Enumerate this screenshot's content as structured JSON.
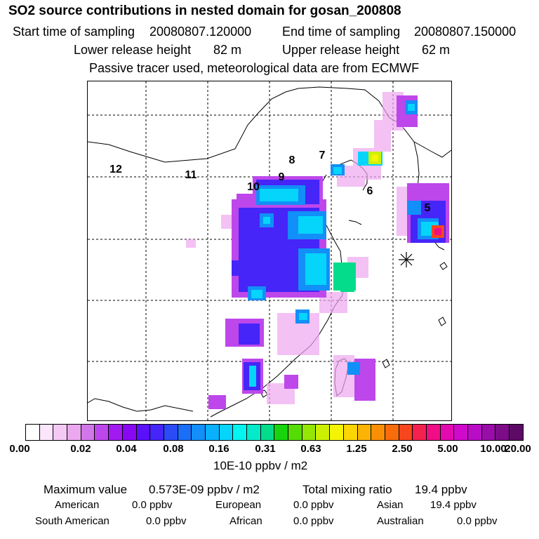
{
  "title": "SO2 source contributions in nested domain for gosan_200808",
  "header": {
    "start_label": "Start time of sampling",
    "start_value": "20080807.120000",
    "end_label": "End time of sampling",
    "end_value": "20080807.150000",
    "lower_label": "Lower release height",
    "lower_value": "82 m",
    "upper_label": "Upper release height",
    "upper_value": "62 m",
    "note": "Passive tracer used, meteorological data are from ECMWF"
  },
  "map": {
    "region_labels": [
      "12",
      "11",
      "10",
      "9",
      "8",
      "7",
      "6",
      "5"
    ],
    "receptor": "gosan-receptor"
  },
  "colorbar": {
    "colors": [
      "#ffffff",
      "#fbe6fb",
      "#f4c9f4",
      "#eaa8ee",
      "#d277ea",
      "#bd47eb",
      "#a21af1",
      "#8a07f4",
      "#5a10f8",
      "#4525f7",
      "#2b4bf6",
      "#1b6ef6",
      "#128ff8",
      "#09b0fb",
      "#05d4fb",
      "#04f4f0",
      "#05eac8",
      "#04dc8c",
      "#18d40e",
      "#56dc05",
      "#94e605",
      "#ccf004",
      "#f4f404",
      "#fbd504",
      "#fbb404",
      "#f98f04",
      "#f86c0b",
      "#f7451d",
      "#f4214e",
      "#f00d86",
      "#e30ab0",
      "#cf0aca",
      "#b80cc5",
      "#990ea9",
      "#7d0c89",
      "#5d0a66"
    ],
    "ticks": [
      "0.00",
      "0.02",
      "0.04",
      "0.08",
      "0.16",
      "0.31",
      "0.63",
      "1.25",
      "2.50",
      "5.00",
      "10.00",
      "20.00"
    ],
    "unit": "10E-10 ppbv / m2"
  },
  "stats": {
    "max_label": "Maximum value",
    "max_value": "0.573E-09 ppbv / m2",
    "total_label": "Total mixing ratio",
    "total_value": "19.4 ppbv"
  },
  "regions": [
    {
      "name": "American",
      "value": "0.0 ppbv"
    },
    {
      "name": "European",
      "value": "0.0 ppbv"
    },
    {
      "name": "Asian",
      "value": "19.4 ppbv"
    },
    {
      "name": "South American",
      "value": "0.0 ppbv"
    },
    {
      "name": "African",
      "value": "0.0 ppbv"
    },
    {
      "name": "Australian",
      "value": "0.0 ppbv"
    }
  ]
}
